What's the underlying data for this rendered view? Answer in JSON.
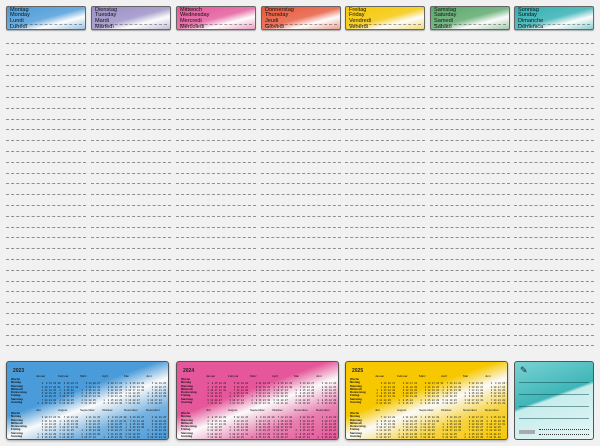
{
  "days": [
    {
      "names": [
        "Montag",
        "Monday",
        "Lundi",
        "Lunedì"
      ],
      "color": "#4a9bd9"
    },
    {
      "names": [
        "Dienstag",
        "Tuesday",
        "Mardi",
        "Martedì"
      ],
      "color": "#9b8fc7"
    },
    {
      "names": [
        "Mittwoch",
        "Wednesday",
        "Mercredi",
        "Mercoledì"
      ],
      "color": "#e5579a"
    },
    {
      "names": [
        "Donnerstag",
        "Thursday",
        "Jeudi",
        "Giovedì"
      ],
      "color": "#e9573a"
    },
    {
      "names": [
        "Freitag",
        "Friday",
        "Vendredi",
        "Venerdì"
      ],
      "color": "#f7c800"
    },
    {
      "names": [
        "Samstag",
        "Saturday",
        "Samedi",
        "Sabato"
      ],
      "color": "#5aa86a"
    },
    {
      "names": [
        "Sonntag",
        "Sunday",
        "Dimanche",
        "Domenica"
      ],
      "color": "#2fb0b3"
    }
  ],
  "calendars": [
    {
      "year": "2023",
      "color": "#4a9bd9"
    },
    {
      "year": "2024",
      "color": "#e5579a"
    },
    {
      "year": "2025",
      "color": "#f7c800"
    }
  ],
  "months": [
    "Januar",
    "Februar",
    "März",
    "April",
    "Mai",
    "Juni",
    "Juli",
    "August",
    "September",
    "Oktober",
    "November",
    "Dezember"
  ],
  "row_labels": [
    "Woche",
    "Montag",
    "Dienstag",
    "Mittwoch",
    "Donnerstag",
    "Freitag",
    "Samstag",
    "Sonntag"
  ],
  "notes": {
    "icon": "pencil-icon"
  }
}
